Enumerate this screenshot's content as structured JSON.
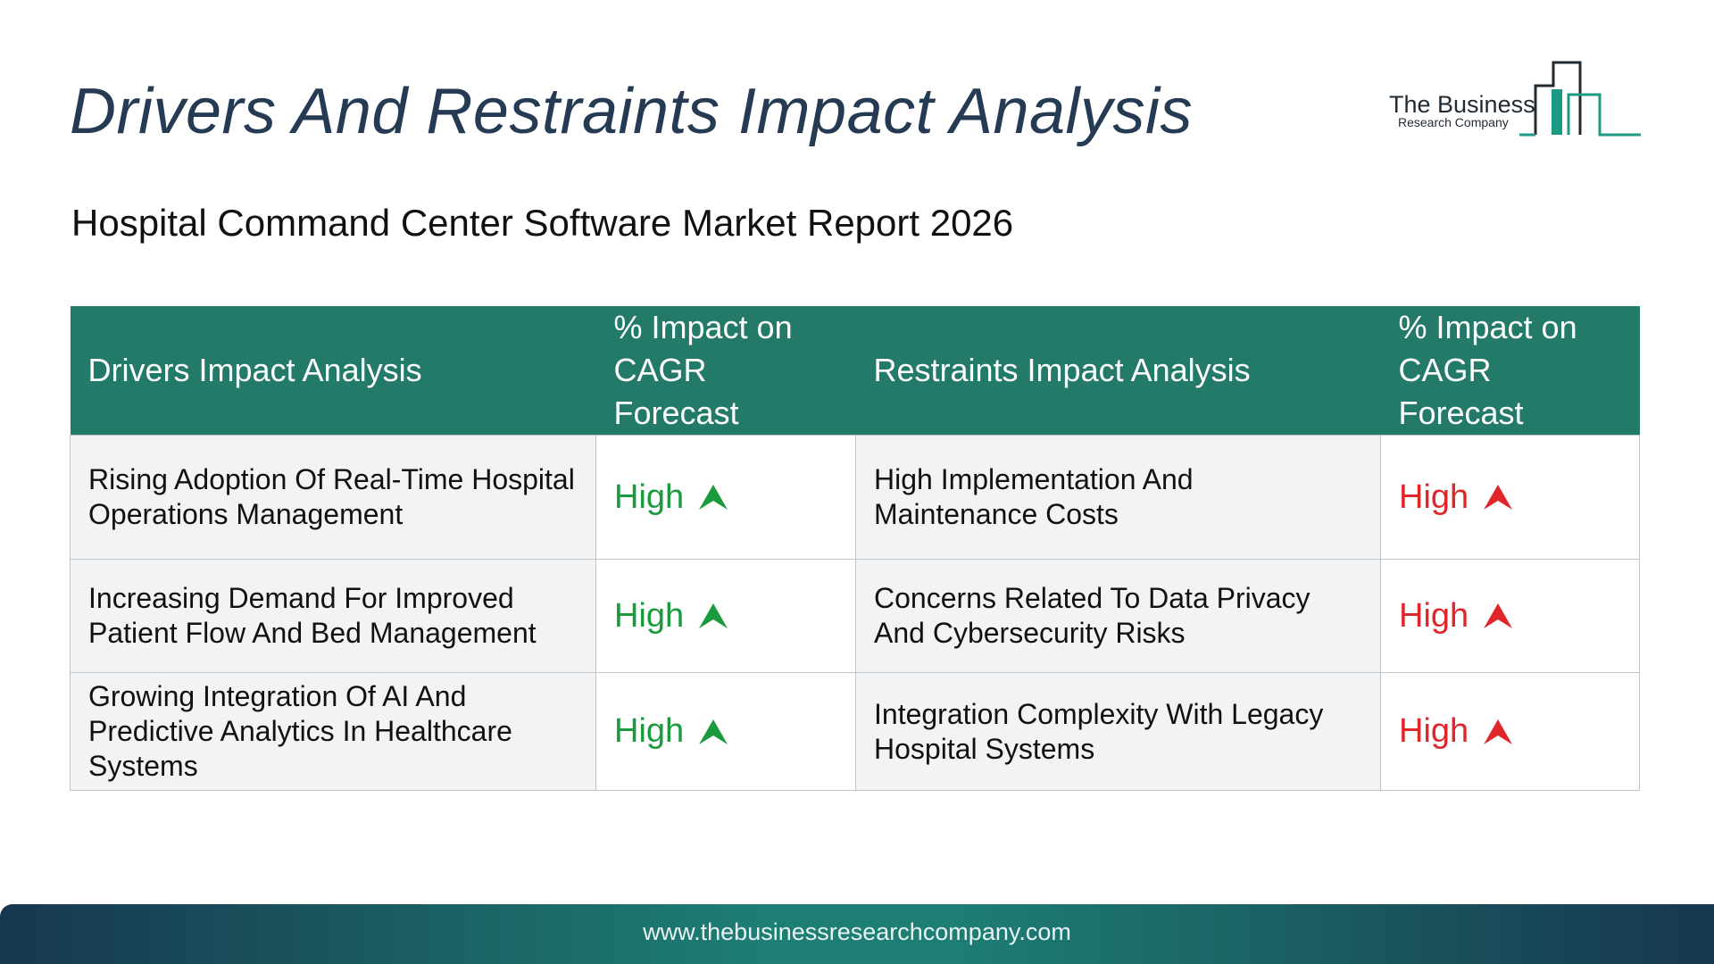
{
  "header": {
    "title": "Drivers And Restraints Impact Analysis",
    "subtitle": "Hospital Command Center Software Market Report 2026"
  },
  "logo": {
    "line1": "The Business",
    "line2": "Research Company",
    "accent_color": "#1d9a84"
  },
  "table": {
    "columns": [
      "Drivers Impact Analysis",
      "% Impact on CAGR Forecast",
      "Restraints Impact Analysis",
      "% Impact on CAGR Forecast"
    ],
    "rows": [
      {
        "driver": "Rising Adoption Of Real-Time Hospital Operations Management",
        "driver_impact": "High",
        "restraint": "High Implementation And Maintenance Costs",
        "restraint_impact": "High"
      },
      {
        "driver": "Increasing Demand For Improved Patient Flow And Bed Management",
        "driver_impact": "High",
        "restraint": "Concerns Related To Data Privacy And Cybersecurity Risks",
        "restraint_impact": "High"
      },
      {
        "driver": "Growing Integration Of AI And Predictive Analytics In Healthcare Systems",
        "driver_impact": "High",
        "restraint": "Integration Complexity With Legacy Hospital Systems",
        "restraint_impact": "High"
      }
    ],
    "colors": {
      "header_bg": "#237a69",
      "driver_impact": "#1a9a3c",
      "restraint_impact": "#e0262b"
    },
    "icons": {
      "driver": "up-arrow-icon-green",
      "restraint": "up-arrow-icon-red"
    }
  },
  "footer": {
    "url": "www.thebusinessresearchcompany.com"
  }
}
